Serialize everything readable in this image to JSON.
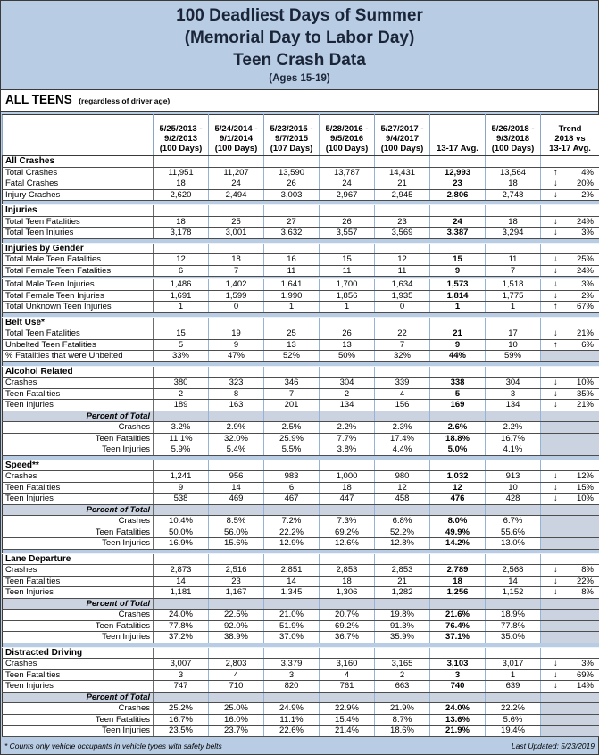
{
  "title": {
    "lines": [
      "100 Deadliest Days of Summer",
      "(Memorial Day to Labor Day)",
      "Teen Crash Data"
    ],
    "subtitle": "(Ages 15-19)"
  },
  "header": {
    "section_label": "ALL TEENS",
    "section_note": "(regardless of driver age)"
  },
  "columns": [
    {
      "lines": [
        "5/25/2013 -",
        "9/2/2013",
        "(100 Days)"
      ]
    },
    {
      "lines": [
        "5/24/2014 -",
        "9/1/2014",
        "(100 Days)"
      ]
    },
    {
      "lines": [
        "5/23/2015 -",
        "9/7/2015",
        "(107 Days)"
      ]
    },
    {
      "lines": [
        "5/28/2016 -",
        "9/5/2016",
        "(100 Days)"
      ]
    },
    {
      "lines": [
        "5/27/2017 -",
        "9/4/2017",
        "(100 Days)"
      ]
    },
    {
      "lines": [
        "13-17 Avg."
      ]
    },
    {
      "lines": [
        "5/26/2018 -",
        "9/3/2018",
        "(100 Days)"
      ]
    },
    {
      "lines": [
        "Trend",
        "2018 vs",
        "13-17 Avg."
      ]
    }
  ],
  "icons": {
    "trend_up_icon": "↑",
    "trend_down_icon": "↓"
  },
  "colors": {
    "page_bg": "#b8cce4",
    "shaded_cell": "#ccd3e0",
    "grid_blue": "#95b3d7",
    "title_text": "#1b2538"
  },
  "sections": [
    {
      "name": "All Crashes",
      "rows": [
        {
          "label": "Total Crashes",
          "values": [
            "11,951",
            "11,207",
            "13,590",
            "13,787",
            "14,431",
            "12,993",
            "13,564"
          ],
          "trend": {
            "dir": "up",
            "pct": "4%"
          }
        },
        {
          "label": "Fatal Crashes",
          "values": [
            "18",
            "24",
            "26",
            "24",
            "21",
            "23",
            "18"
          ],
          "trend": {
            "dir": "down",
            "pct": "20%"
          }
        },
        {
          "label": "Injury Crashes",
          "values": [
            "2,620",
            "2,494",
            "3,003",
            "2,967",
            "2,945",
            "2,806",
            "2,748"
          ],
          "trend": {
            "dir": "down",
            "pct": "2%"
          }
        }
      ]
    },
    {
      "name": "Injuries",
      "rows": [
        {
          "label": "Total Teen Fatalities",
          "values": [
            "18",
            "25",
            "27",
            "26",
            "23",
            "24",
            "18"
          ],
          "trend": {
            "dir": "down",
            "pct": "24%"
          }
        },
        {
          "label": "Total Teen Injuries",
          "values": [
            "3,178",
            "3,001",
            "3,632",
            "3,557",
            "3,569",
            "3,387",
            "3,294"
          ],
          "trend": {
            "dir": "down",
            "pct": "3%"
          }
        }
      ]
    },
    {
      "name": "Injuries by Gender",
      "thin_sep_after": 1,
      "rows": [
        {
          "label": "Total Male Teen Fatalities",
          "values": [
            "12",
            "18",
            "16",
            "15",
            "12",
            "15",
            "11"
          ],
          "trend": {
            "dir": "down",
            "pct": "25%"
          }
        },
        {
          "label": "Total Female Teen Fatalities",
          "values": [
            "6",
            "7",
            "11",
            "11",
            "11",
            "9",
            "7"
          ],
          "trend": {
            "dir": "down",
            "pct": "24%"
          }
        },
        {
          "label": "Total Male Teen Injuries",
          "values": [
            "1,486",
            "1,402",
            "1,641",
            "1,700",
            "1,634",
            "1,573",
            "1,518"
          ],
          "trend": {
            "dir": "down",
            "pct": "3%"
          }
        },
        {
          "label": "Total Female Teen Injuries",
          "values": [
            "1,691",
            "1,599",
            "1,990",
            "1,856",
            "1,935",
            "1,814",
            "1,775"
          ],
          "trend": {
            "dir": "down",
            "pct": "2%"
          }
        },
        {
          "label": "Total Unknown Teen Injuries",
          "values": [
            "1",
            "0",
            "1",
            "1",
            "0",
            "1",
            "1"
          ],
          "trend": {
            "dir": "up",
            "pct": "67%"
          }
        }
      ]
    },
    {
      "name": "Belt Use*",
      "rows": [
        {
          "label": "Total Teen Fatalities",
          "values": [
            "15",
            "19",
            "25",
            "26",
            "22",
            "21",
            "17"
          ],
          "trend": {
            "dir": "down",
            "pct": "21%"
          }
        },
        {
          "label": "Unbelted Teen Fatalities",
          "values": [
            "5",
            "9",
            "13",
            "13",
            "7",
            "9",
            "10"
          ],
          "trend": {
            "dir": "up",
            "pct": "6%"
          }
        },
        {
          "label": "% Fatalities that were Unbelted",
          "values": [
            "33%",
            "47%",
            "52%",
            "50%",
            "32%",
            "44%",
            "59%"
          ],
          "trend": null
        }
      ]
    },
    {
      "name": "Alcohol Related",
      "rows": [
        {
          "label": "Crashes",
          "values": [
            "380",
            "323",
            "346",
            "304",
            "339",
            "338",
            "304"
          ],
          "trend": {
            "dir": "down",
            "pct": "10%"
          }
        },
        {
          "label": "Teen Fatalities",
          "values": [
            "2",
            "8",
            "7",
            "2",
            "4",
            "5",
            "3"
          ],
          "trend": {
            "dir": "down",
            "pct": "35%"
          }
        },
        {
          "label": "Teen Injuries",
          "values": [
            "189",
            "163",
            "201",
            "134",
            "156",
            "169",
            "134"
          ],
          "trend": {
            "dir": "down",
            "pct": "21%"
          }
        }
      ],
      "percent_of_total": {
        "label": "Percent of Total",
        "rows": [
          {
            "label": "Crashes",
            "values": [
              "3.2%",
              "2.9%",
              "2.5%",
              "2.2%",
              "2.3%",
              "2.6%",
              "2.2%"
            ]
          },
          {
            "label": "Teen Fatalities",
            "values": [
              "11.1%",
              "32.0%",
              "25.9%",
              "7.7%",
              "17.4%",
              "18.8%",
              "16.7%"
            ]
          },
          {
            "label": "Teen Injuries",
            "values": [
              "5.9%",
              "5.4%",
              "5.5%",
              "3.8%",
              "4.4%",
              "5.0%",
              "4.1%"
            ]
          }
        ]
      }
    },
    {
      "name": "Speed**",
      "rows": [
        {
          "label": "Crashes",
          "values": [
            "1,241",
            "956",
            "983",
            "1,000",
            "980",
            "1,032",
            "913"
          ],
          "trend": {
            "dir": "down",
            "pct": "12%"
          }
        },
        {
          "label": "Teen Fatalities",
          "values": [
            "9",
            "14",
            "6",
            "18",
            "12",
            "12",
            "10"
          ],
          "trend": {
            "dir": "down",
            "pct": "15%"
          }
        },
        {
          "label": "Teen Injuries",
          "values": [
            "538",
            "469",
            "467",
            "447",
            "458",
            "476",
            "428"
          ],
          "trend": {
            "dir": "down",
            "pct": "10%"
          }
        }
      ],
      "percent_of_total": {
        "label": "Percent of Total",
        "rows": [
          {
            "label": "Crashes",
            "values": [
              "10.4%",
              "8.5%",
              "7.2%",
              "7.3%",
              "6.8%",
              "8.0%",
              "6.7%"
            ]
          },
          {
            "label": "Teen Fatalities",
            "values": [
              "50.0%",
              "56.0%",
              "22.2%",
              "69.2%",
              "52.2%",
              "49.9%",
              "55.6%"
            ]
          },
          {
            "label": "Teen Injuries",
            "values": [
              "16.9%",
              "15.6%",
              "12.9%",
              "12.6%",
              "12.8%",
              "14.2%",
              "13.0%"
            ]
          }
        ]
      }
    },
    {
      "name": "Lane Departure",
      "rows": [
        {
          "label": "Crashes",
          "values": [
            "2,873",
            "2,516",
            "2,851",
            "2,853",
            "2,853",
            "2,789",
            "2,568"
          ],
          "trend": {
            "dir": "down",
            "pct": "8%"
          }
        },
        {
          "label": "Teen Fatalities",
          "values": [
            "14",
            "23",
            "14",
            "18",
            "21",
            "18",
            "14"
          ],
          "trend": {
            "dir": "down",
            "pct": "22%"
          }
        },
        {
          "label": "Teen Injuries",
          "values": [
            "1,181",
            "1,167",
            "1,345",
            "1,306",
            "1,282",
            "1,256",
            "1,152"
          ],
          "trend": {
            "dir": "down",
            "pct": "8%"
          }
        }
      ],
      "percent_of_total": {
        "label": "Percent of Total",
        "rows": [
          {
            "label": "Crashes",
            "values": [
              "24.0%",
              "22.5%",
              "21.0%",
              "20.7%",
              "19.8%",
              "21.6%",
              "18.9%"
            ]
          },
          {
            "label": "Teen Fatalities",
            "values": [
              "77.8%",
              "92.0%",
              "51.9%",
              "69.2%",
              "91.3%",
              "76.4%",
              "77.8%"
            ]
          },
          {
            "label": "Teen Injuries",
            "values": [
              "37.2%",
              "38.9%",
              "37.0%",
              "36.7%",
              "35.9%",
              "37.1%",
              "35.0%"
            ]
          }
        ]
      }
    },
    {
      "name": "Distracted Driving",
      "rows": [
        {
          "label": "Crashes",
          "values": [
            "3,007",
            "2,803",
            "3,379",
            "3,160",
            "3,165",
            "3,103",
            "3,017"
          ],
          "trend": {
            "dir": "down",
            "pct": "3%"
          }
        },
        {
          "label": "Teen Fatalities",
          "values": [
            "3",
            "4",
            "3",
            "4",
            "2",
            "3",
            "1"
          ],
          "trend": {
            "dir": "down",
            "pct": "69%"
          }
        },
        {
          "label": "Teen Injuries",
          "values": [
            "747",
            "710",
            "820",
            "761",
            "663",
            "740",
            "639"
          ],
          "trend": {
            "dir": "down",
            "pct": "14%"
          }
        }
      ],
      "percent_of_total": {
        "label": "Percent of Total",
        "rows": [
          {
            "label": "Crashes",
            "values": [
              "25.2%",
              "25.0%",
              "24.9%",
              "22.9%",
              "21.9%",
              "24.0%",
              "22.2%"
            ]
          },
          {
            "label": "Teen Fatalities",
            "values": [
              "16.7%",
              "16.0%",
              "11.1%",
              "15.4%",
              "8.7%",
              "13.6%",
              "5.6%"
            ]
          },
          {
            "label": "Teen Injuries",
            "values": [
              "23.5%",
              "23.7%",
              "22.6%",
              "21.4%",
              "18.6%",
              "21.9%",
              "19.4%"
            ]
          }
        ]
      }
    }
  ],
  "footer": {
    "footnote": "* Counts only vehicle occupants in vehicle types with safety belts",
    "last_updated": "Last Updated: 5/23/2019"
  }
}
